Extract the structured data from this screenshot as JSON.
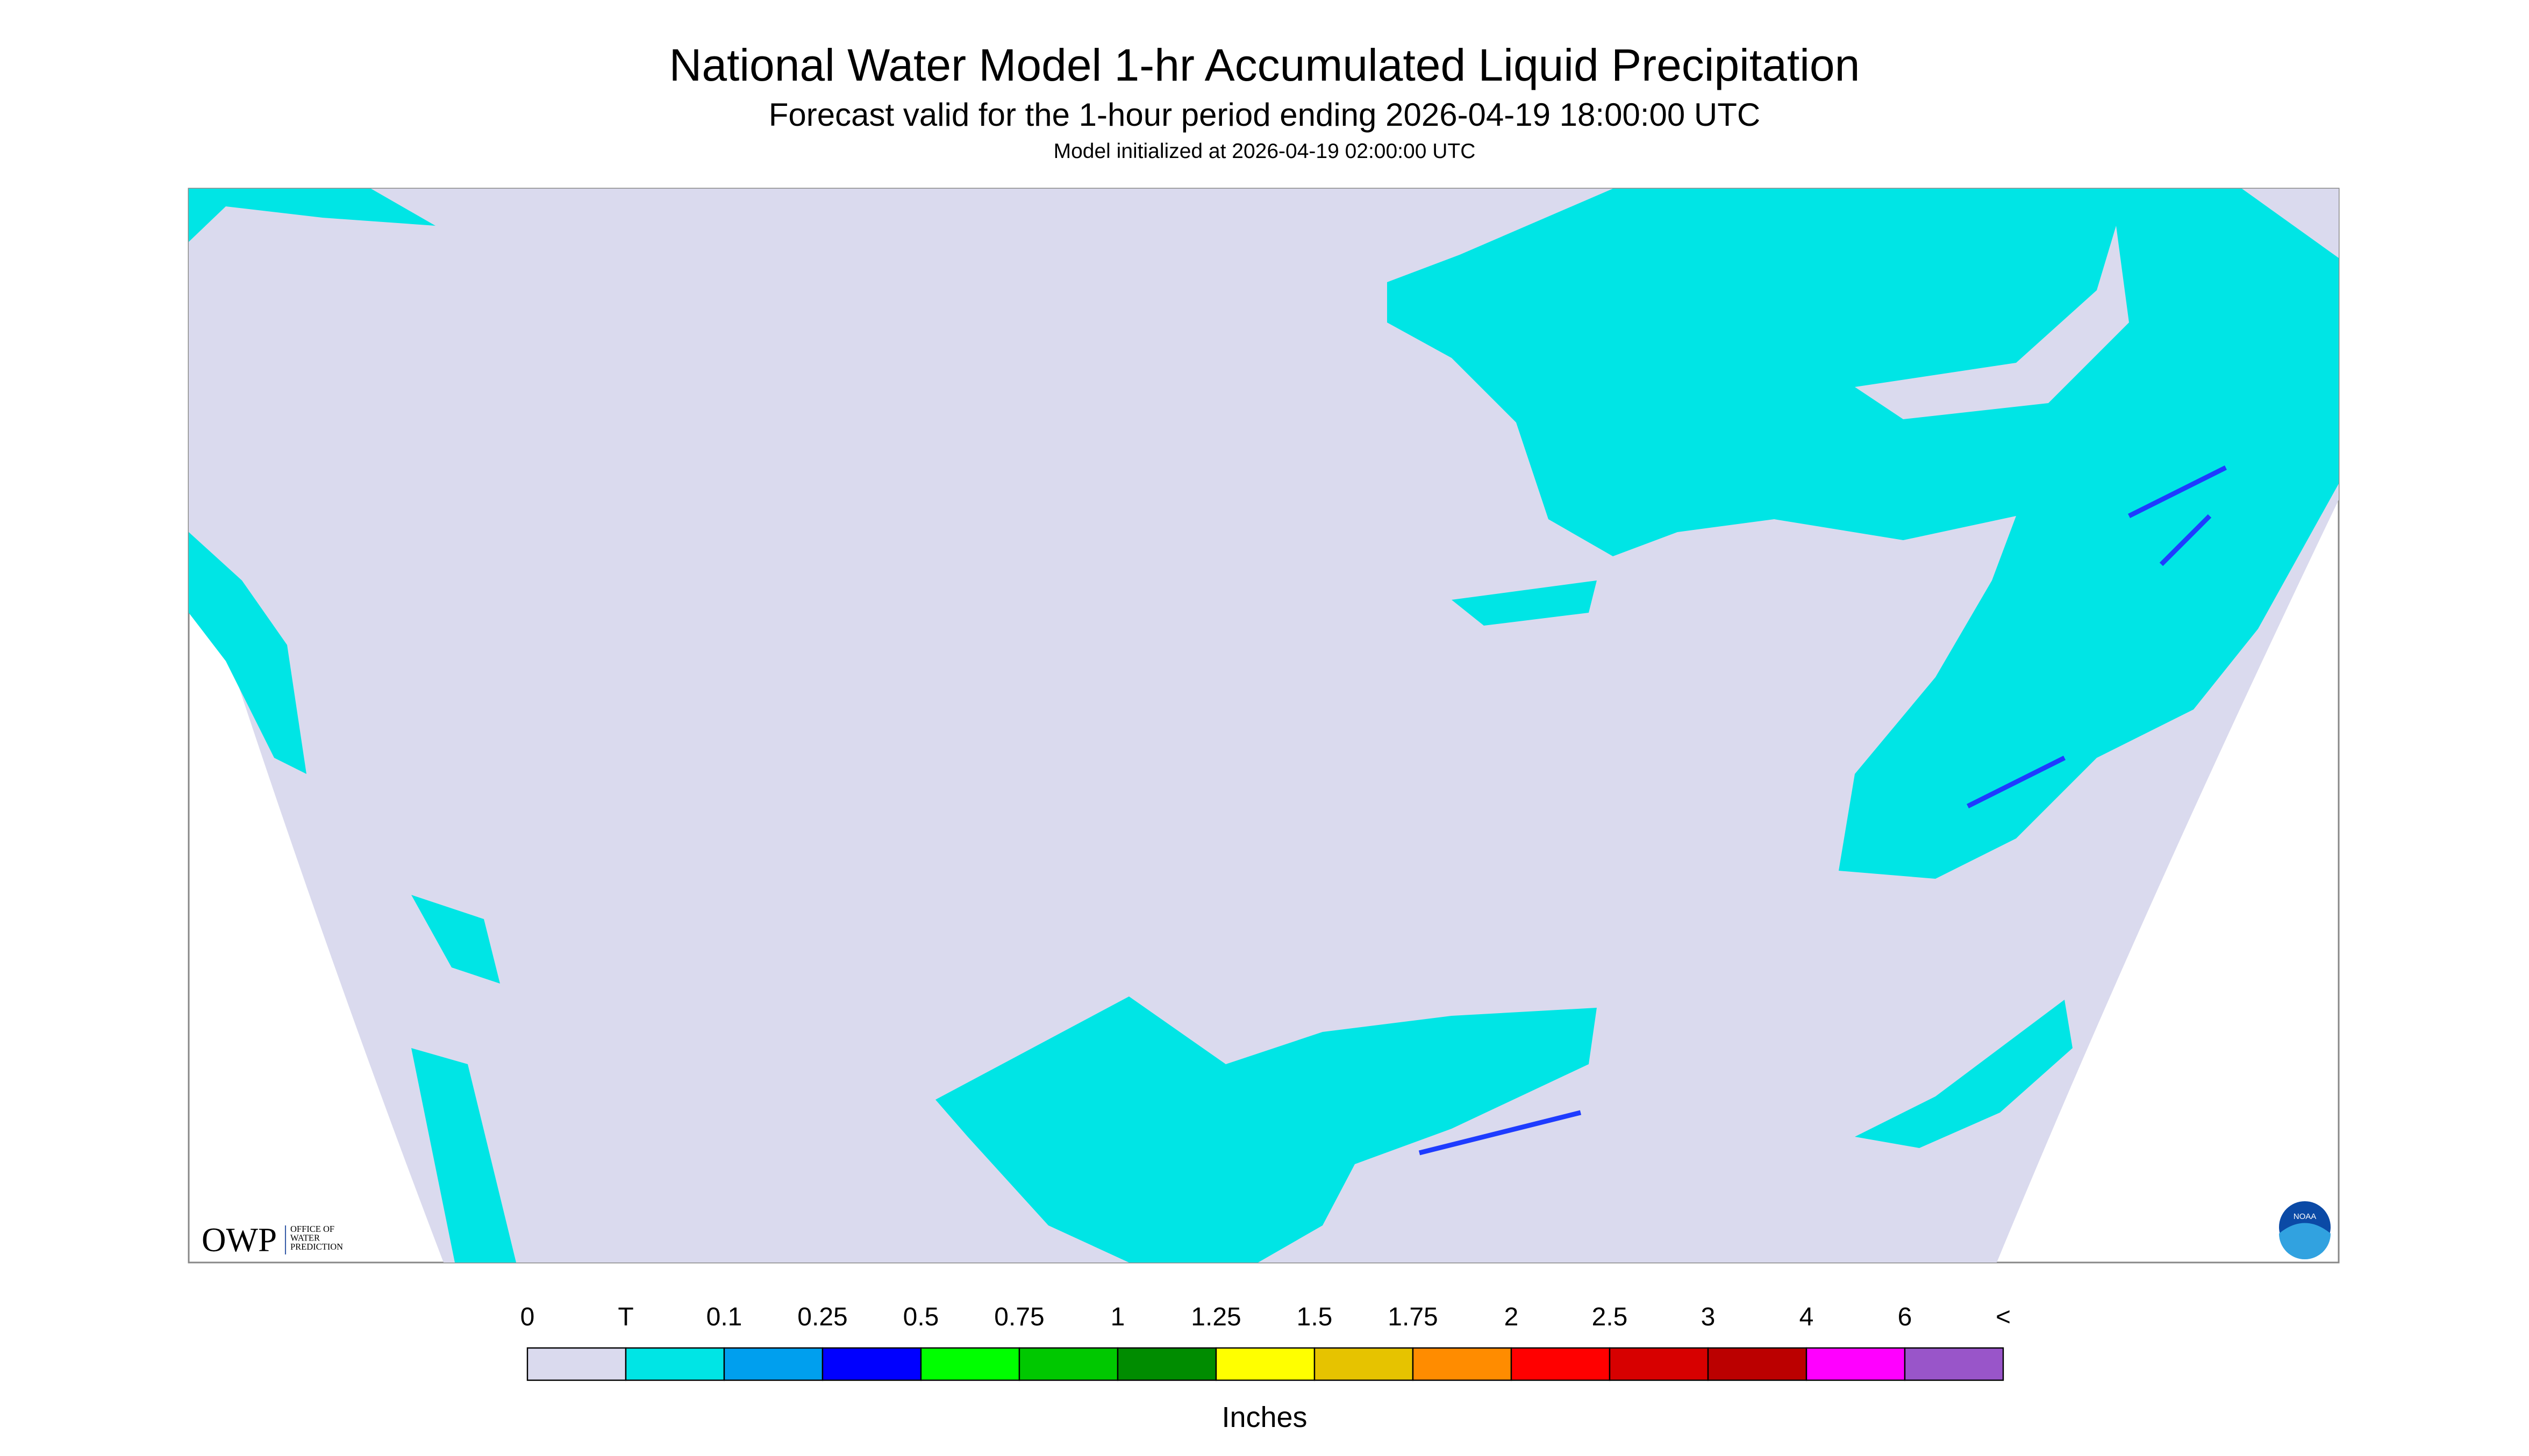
{
  "header": {
    "title": "National Water Model 1-hr Accumulated Liquid Precipitation",
    "subtitle": "Forecast valid for the 1-hour period ending 2026-04-19 18:00:00 UTC",
    "init": "Model initialized at 2026-04-19 02:00:00 UTC"
  },
  "legend": {
    "labels": [
      "0",
      "T",
      "0.1",
      "0.25",
      "0.5",
      "0.75",
      "1",
      "1.25",
      "1.5",
      "1.75",
      "2",
      "2.5",
      "3",
      "4",
      "6",
      "<"
    ],
    "colors": [
      "#dadaee",
      "#00e5e5",
      "#009fee",
      "#0000ff",
      "#00ff00",
      "#00c800",
      "#008c00",
      "#ffff00",
      "#e6c300",
      "#ff8c00",
      "#ff0000",
      "#d70000",
      "#bb0000",
      "#ff00ff",
      "#9955c9"
    ],
    "units": "Inches"
  },
  "logo": {
    "abbr": "OWP",
    "name_lines": [
      "OFFICE OF",
      "WATER",
      "PREDICTION"
    ],
    "agency": "NOAA"
  }
}
